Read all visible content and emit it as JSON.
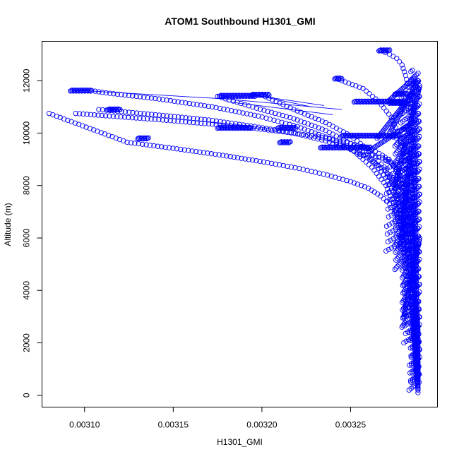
{
  "chart_data": {
    "type": "scatter",
    "title": "ATOM1 Southbound H1301_GMI",
    "xlabel": "H1301_GMI",
    "ylabel": "Altitude (m)",
    "xlim": [
      0.003076,
      0.003299
    ],
    "ylim": [
      -450,
      13500
    ],
    "xticks": [
      {
        "value": 0.0031,
        "label": "0.00310"
      },
      {
        "value": 0.00315,
        "label": "0.00315"
      },
      {
        "value": 0.0032,
        "label": "0.00320"
      },
      {
        "value": 0.00325,
        "label": "0.00325"
      }
    ],
    "yticks": [
      {
        "value": 0,
        "label": "0"
      },
      {
        "value": 2000,
        "label": "2000"
      },
      {
        "value": 4000,
        "label": "4000"
      },
      {
        "value": 6000,
        "label": "6000"
      },
      {
        "value": 8000,
        "label": "8000"
      },
      {
        "value": 10000,
        "label": "10000"
      },
      {
        "value": 12000,
        "label": "12000"
      }
    ],
    "point_color": "#0000ff",
    "marker": "open-circle",
    "grid": false,
    "legend": "none",
    "series": [
      {
        "x": [
          0.003288,
          0.003288,
          0.003287,
          0.003288,
          0.003287,
          0.003286,
          0.003287,
          0.003285,
          0.003285,
          0.003283,
          0.003282,
          0.003281,
          0.003279,
          0.003278,
          0.003276,
          0.003274,
          0.003271,
          0.003268,
          0.003264,
          0.003258,
          0.00325,
          0.00324,
          0.003228,
          0.003212,
          0.003193,
          0.00317,
          0.003144,
          0.003114,
          0.003095
        ],
        "y": [
          100,
          800,
          1600,
          2400,
          3200,
          4000,
          4800,
          5600,
          6300,
          6900,
          7400,
          7800,
          8100,
          8400,
          8600,
          8800,
          9000,
          9150,
          9300,
          9450,
          9600,
          9750,
          9900,
          10050,
          10200,
          10350,
          10500,
          10650,
          10750
        ]
      },
      {
        "x": [
          0.003288,
          0.003287,
          0.003286,
          0.003285,
          0.003284,
          0.003283,
          0.003281,
          0.003279,
          0.003276,
          0.003272,
          0.003267,
          0.00326,
          0.00325,
          0.003237,
          0.003221,
          0.003201,
          0.003178,
          0.003152,
          0.003124,
          0.00308
        ],
        "y": [
          200,
          1200,
          2200,
          3200,
          4200,
          5100,
          5800,
          6400,
          6900,
          7300,
          7600,
          7900,
          8150,
          8400,
          8650,
          8900,
          9150,
          9400,
          9650,
          10750
        ]
      },
      {
        "x": [
          0.003288,
          0.003287,
          0.003287,
          0.003286,
          0.003285,
          0.003284,
          0.003282,
          0.003279,
          0.003275,
          0.003269,
          0.003261,
          0.00325,
          0.003236,
          0.003218,
          0.003196,
          0.00317,
          0.00314,
          0.003108
        ],
        "y": [
          300,
          1500,
          2700,
          3900,
          5000,
          6000,
          6800,
          7500,
          8100,
          8600,
          9000,
          9400,
          9700,
          10000,
          10250,
          10500,
          10700,
          10900
        ]
      },
      {
        "x": [
          0.003288,
          0.003286,
          0.003284,
          0.003282,
          0.003279,
          0.003275,
          0.00327,
          0.003262,
          0.003252,
          0.003238,
          0.00322,
          0.003198,
          0.003172,
          0.003142,
          0.00311,
          0.003104
        ],
        "y": [
          400,
          2000,
          3600,
          5000,
          6200,
          7200,
          8000,
          8700,
          9300,
          9800,
          10250,
          10650,
          11000,
          11300,
          11550,
          11620
        ]
      },
      {
        "x": [
          0.003288,
          0.003287,
          0.003285,
          0.003283,
          0.00328,
          0.003276,
          0.00327,
          0.003262,
          0.00325,
          0.003236,
          0.003218,
          0.003197,
          0.003175
        ],
        "y": [
          500,
          2200,
          3900,
          5300,
          6500,
          7500,
          8300,
          9000,
          9600,
          10100,
          10550,
          10950,
          11400
        ]
      },
      {
        "x": [
          0.003288,
          0.003286,
          0.003284,
          0.003282,
          0.003279,
          0.003275,
          0.003269,
          0.003261,
          0.00325,
          0.003236,
          0.003218,
          0.0032
        ],
        "y": [
          600,
          2400,
          4200,
          5700,
          6900,
          7900,
          8700,
          9300,
          9900,
          10400,
          10900,
          11450
        ]
      },
      {
        "x": [
          0.003288,
          0.003287,
          0.003286,
          0.003285,
          0.003283,
          0.003281,
          0.003278,
          0.003273,
          0.003266,
          0.003257,
          0.003243
        ],
        "y": [
          700,
          2600,
          4500,
          6200,
          7600,
          8800,
          9800,
          10600,
          11200,
          11700,
          12050
        ]
      },
      {
        "x": [
          0.003288,
          0.003288,
          0.003287,
          0.003287,
          0.003286,
          0.003286,
          0.003285,
          0.003284,
          0.003283,
          0.003281,
          0.003279,
          0.003276,
          0.003272,
          0.003267
        ],
        "y": [
          800,
          2500,
          4200,
          5900,
          7400,
          8700,
          9800,
          10800,
          11600,
          12200,
          12600,
          12850,
          13000,
          13150
        ]
      },
      {
        "x": [
          0.003288,
          0.003288,
          0.003287,
          0.003287,
          0.003286,
          0.003285,
          0.003284,
          0.003283,
          0.003282,
          0.00328,
          0.003278,
          0.003276,
          0.003274,
          0.003272
        ],
        "y": [
          900,
          2300,
          3700,
          5100,
          6400,
          7500,
          8300,
          8900,
          9300,
          9550,
          9700,
          9800,
          9850,
          9880
        ]
      },
      {
        "x": [
          0.003288,
          0.003287,
          0.003285,
          0.003283,
          0.00328,
          0.003277,
          0.003273,
          0.003268,
          0.003262,
          0.003255
        ],
        "y": [
          1000,
          3000,
          5000,
          6600,
          7800,
          8500,
          8850,
          9050,
          9150,
          9200
        ]
      }
    ],
    "clusters": [
      {
        "x_start": 0.003092,
        "x_end": 0.003104,
        "y": 11620
      },
      {
        "x_start": 0.003113,
        "x_end": 0.00312,
        "y": 10900
      },
      {
        "x_start": 0.00313,
        "x_end": 0.003136,
        "y": 9800
      },
      {
        "x_start": 0.003176,
        "x_end": 0.003196,
        "y": 11420
      },
      {
        "x_start": 0.003194,
        "x_end": 0.003204,
        "y": 11460
      },
      {
        "x_start": 0.003175,
        "x_end": 0.003194,
        "y": 10200
      },
      {
        "x_start": 0.003209,
        "x_end": 0.003219,
        "y": 10200
      },
      {
        "x_start": 0.00321,
        "x_end": 0.003216,
        "y": 9650
      },
      {
        "x_start": 0.003233,
        "x_end": 0.003261,
        "y": 9450
      },
      {
        "x_start": 0.003245,
        "x_end": 0.003278,
        "y": 9900
      },
      {
        "x_start": 0.003241,
        "x_end": 0.003245,
        "y": 12080
      },
      {
        "x_start": 0.003266,
        "x_end": 0.003272,
        "y": 13150
      },
      {
        "x_start": 0.003252,
        "x_end": 0.00328,
        "y": 11200
      },
      {
        "x_start": 0.003272,
        "x_end": 0.003282,
        "y": 11150
      },
      {
        "x_start": 0.003275,
        "x_end": 0.003282,
        "y": 11500
      }
    ],
    "trails": [
      {
        "x": [
          0.003104,
          0.00318,
          0.003245
        ],
        "y": [
          11600,
          11300,
          10900
        ]
      },
      {
        "x": [
          0.003195,
          0.003235
        ],
        "y": [
          11450,
          11050
        ]
      },
      {
        "x": [
          0.00318,
          0.00324
        ],
        "y": [
          11200,
          10700
        ]
      },
      {
        "x": [
          0.003196,
          0.003228
        ],
        "y": [
          11450,
          11000
        ]
      }
    ],
    "columns": [
      {
        "x_start": 0.003278,
        "x_end": 0.003284,
        "y_start": 6000,
        "y_end": 11400
      },
      {
        "x_start": 0.003283,
        "x_end": 0.003289,
        "y_start": 200,
        "y_end": 12000
      },
      {
        "x_start": 0.00328,
        "x_end": 0.003287,
        "y_start": 2000,
        "y_end": 10200
      },
      {
        "x_start": 0.003284,
        "x_end": 0.003289,
        "y_start": 500,
        "y_end": 12400
      },
      {
        "x_start": 0.003279,
        "x_end": 0.003282,
        "y_start": 2600,
        "y_end": 8200
      },
      {
        "x_start": 0.003275,
        "x_end": 0.003279,
        "y_start": 4800,
        "y_end": 9800
      },
      {
        "x_start": 0.00327,
        "x_end": 0.003278,
        "y_start": 5500,
        "y_end": 9000
      }
    ],
    "spikes": [
      {
        "x": [
          0.003272,
          0.003288
        ],
        "y": [
          10000,
          12000
        ]
      },
      {
        "x": [
          0.003271,
          0.003286
        ],
        "y": [
          11200,
          12100
        ]
      },
      {
        "x": [
          0.003265,
          0.003285
        ],
        "y": [
          9800,
          11500
        ]
      },
      {
        "x": [
          0.00326,
          0.003287
        ],
        "y": [
          9300,
          10500
        ]
      },
      {
        "x": [
          0.003275,
          0.003289
        ],
        "y": [
          8000,
          11800
        ]
      },
      {
        "x": [
          0.003278,
          0.003284
        ],
        "y": [
          5600,
          9400
        ]
      },
      {
        "x": [
          0.00328,
          0.003289
        ],
        "y": [
          3000,
          6000
        ]
      }
    ]
  }
}
